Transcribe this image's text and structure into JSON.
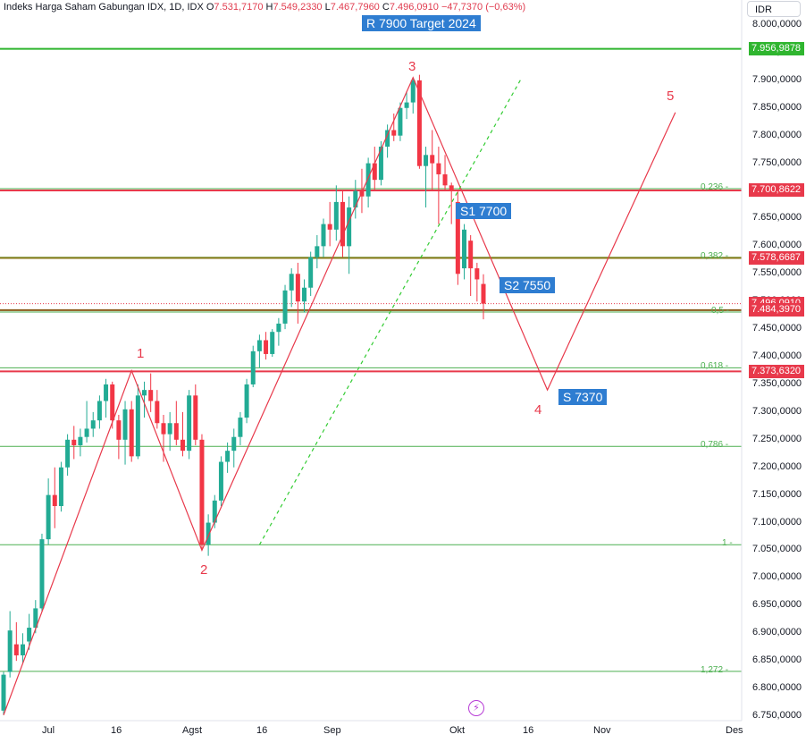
{
  "header": {
    "symbol": "Indeks Harga Saham Gabungan IDX, 1D, IDX",
    "o_label": "O",
    "o": "7.531,7170",
    "h_label": "H",
    "h": "7.549,2330",
    "l_label": "L",
    "l": "7.467,7960",
    "c_label": "C",
    "c": "7.496,0910",
    "change": "−47,7370 (−0,63%)"
  },
  "currency": "IDR",
  "annotations": {
    "resistance_label": "R 7900 Target 2024",
    "s1_label": "S1 7700",
    "s2_label": "S2 7550",
    "s_label": "S 7370",
    "wave_1": "1",
    "wave_2": "2",
    "wave_3": "3",
    "wave_4": "4",
    "wave_5": "5"
  },
  "price_tags": [
    {
      "text": "7.956,9878",
      "price": 7956.9878,
      "color": "#2fb52f"
    },
    {
      "text": "7.700,8622",
      "price": 7700.8622,
      "color": "#e8394b"
    },
    {
      "text": "7.578,6687",
      "price": 7578.6687,
      "color": "#e8394b"
    },
    {
      "text": "7.496,0910",
      "price": 7496.091,
      "color": "#e8394b"
    },
    {
      "text": "7.484,3970",
      "price": 7484.397,
      "color": "#e8394b"
    },
    {
      "text": "7.373,6320",
      "price": 7373.632,
      "color": "#e8394b"
    }
  ],
  "fib_levels": [
    {
      "label": "0,236",
      "price": 7704
    },
    {
      "label": "0,382",
      "price": 7580
    },
    {
      "label": "0,5",
      "price": 7481
    },
    {
      "label": "0,618",
      "price": 7380
    },
    {
      "label": "0,786",
      "price": 7238
    },
    {
      "label": "1",
      "price": 7060
    },
    {
      "label": "1,272",
      "price": 6831
    }
  ],
  "price_ticks": [
    "8.000,0000",
    "7.950,0000",
    "7.900,0000",
    "7.850,0000",
    "7.800,0000",
    "7.750,0000",
    "7.700,0000",
    "7.650,0000",
    "7.600,0000",
    "7.550,0000",
    "7.500,0000",
    "7.450,0000",
    "7.400,0000",
    "7.350,0000",
    "7.300,0000",
    "7.250,0000",
    "7.200,0000",
    "7.150,0000",
    "7.100,0000",
    "7.050,0000",
    "7.000,0000",
    "6.950,0000",
    "6.900,0000",
    "6.850,0000",
    "6.800,0000",
    "6.750,0000"
  ],
  "time_ticks": [
    "Jul",
    "16",
    "Agst",
    "16",
    "Sep",
    "Okt",
    "16",
    "Nov",
    "Des"
  ],
  "colors": {
    "up": "#22ab94",
    "down": "#f23645",
    "fib": "#4caf50",
    "wave": "#e8394b",
    "bluelabel": "#2e7dd1"
  },
  "chart_data": {
    "type": "candlestick",
    "ylabel": "IDR",
    "ylim": [
      6750,
      8000
    ],
    "candles": [
      {
        "o": 6760,
        "h": 6830,
        "l": 6752,
        "c": 6825
      },
      {
        "o": 6830,
        "h": 6940,
        "l": 6820,
        "c": 6905
      },
      {
        "o": 6880,
        "h": 6920,
        "l": 6850,
        "c": 6860
      },
      {
        "o": 6860,
        "h": 6900,
        "l": 6845,
        "c": 6880
      },
      {
        "o": 6885,
        "h": 6935,
        "l": 6870,
        "c": 6910
      },
      {
        "o": 6910,
        "h": 6960,
        "l": 6900,
        "c": 6945
      },
      {
        "o": 6945,
        "h": 7080,
        "l": 6940,
        "c": 7070
      },
      {
        "o": 7070,
        "h": 7180,
        "l": 7060,
        "c": 7150
      },
      {
        "o": 7150,
        "h": 7200,
        "l": 7090,
        "c": 7130
      },
      {
        "o": 7130,
        "h": 7210,
        "l": 7120,
        "c": 7200
      },
      {
        "o": 7200,
        "h": 7260,
        "l": 7185,
        "c": 7250
      },
      {
        "o": 7250,
        "h": 7275,
        "l": 7215,
        "c": 7240
      },
      {
        "o": 7240,
        "h": 7270,
        "l": 7220,
        "c": 7255
      },
      {
        "o": 7255,
        "h": 7320,
        "l": 7245,
        "c": 7270
      },
      {
        "o": 7270,
        "h": 7300,
        "l": 7255,
        "c": 7285
      },
      {
        "o": 7285,
        "h": 7330,
        "l": 7270,
        "c": 7320
      },
      {
        "o": 7320,
        "h": 7360,
        "l": 7290,
        "c": 7350
      },
      {
        "o": 7350,
        "h": 7355,
        "l": 7270,
        "c": 7285
      },
      {
        "o": 7285,
        "h": 7295,
        "l": 7215,
        "c": 7250
      },
      {
        "o": 7250,
        "h": 7320,
        "l": 7205,
        "c": 7305
      },
      {
        "o": 7305,
        "h": 7320,
        "l": 7210,
        "c": 7220
      },
      {
        "o": 7220,
        "h": 7350,
        "l": 7215,
        "c": 7330
      },
      {
        "o": 7330,
        "h": 7355,
        "l": 7290,
        "c": 7340
      },
      {
        "o": 7340,
        "h": 7370,
        "l": 7300,
        "c": 7320
      },
      {
        "o": 7320,
        "h": 7340,
        "l": 7270,
        "c": 7280
      },
      {
        "o": 7280,
        "h": 7295,
        "l": 7210,
        "c": 7260
      },
      {
        "o": 7260,
        "h": 7300,
        "l": 7230,
        "c": 7280
      },
      {
        "o": 7280,
        "h": 7320,
        "l": 7240,
        "c": 7250
      },
      {
        "o": 7250,
        "h": 7300,
        "l": 7220,
        "c": 7230
      },
      {
        "o": 7230,
        "h": 7340,
        "l": 7215,
        "c": 7330
      },
      {
        "o": 7330,
        "h": 7350,
        "l": 7240,
        "c": 7250
      },
      {
        "o": 7250,
        "h": 7260,
        "l": 7050,
        "c": 7060
      },
      {
        "o": 7060,
        "h": 7115,
        "l": 7040,
        "c": 7100
      },
      {
        "o": 7100,
        "h": 7150,
        "l": 7090,
        "c": 7140
      },
      {
        "o": 7140,
        "h": 7220,
        "l": 7130,
        "c": 7210
      },
      {
        "o": 7210,
        "h": 7245,
        "l": 7190,
        "c": 7230
      },
      {
        "o": 7230,
        "h": 7270,
        "l": 7200,
        "c": 7255
      },
      {
        "o": 7255,
        "h": 7300,
        "l": 7240,
        "c": 7290
      },
      {
        "o": 7290,
        "h": 7360,
        "l": 7280,
        "c": 7350
      },
      {
        "o": 7350,
        "h": 7420,
        "l": 7345,
        "c": 7410
      },
      {
        "o": 7410,
        "h": 7440,
        "l": 7380,
        "c": 7430
      },
      {
        "o": 7430,
        "h": 7445,
        "l": 7395,
        "c": 7405
      },
      {
        "o": 7405,
        "h": 7450,
        "l": 7400,
        "c": 7445
      },
      {
        "o": 7445,
        "h": 7470,
        "l": 7420,
        "c": 7460
      },
      {
        "o": 7460,
        "h": 7530,
        "l": 7450,
        "c": 7520
      },
      {
        "o": 7520,
        "h": 7560,
        "l": 7490,
        "c": 7550
      },
      {
        "o": 7550,
        "h": 7570,
        "l": 7460,
        "c": 7500
      },
      {
        "o": 7500,
        "h": 7540,
        "l": 7480,
        "c": 7525
      },
      {
        "o": 7525,
        "h": 7590,
        "l": 7510,
        "c": 7580
      },
      {
        "o": 7580,
        "h": 7620,
        "l": 7560,
        "c": 7600
      },
      {
        "o": 7600,
        "h": 7650,
        "l": 7580,
        "c": 7640
      },
      {
        "o": 7640,
        "h": 7680,
        "l": 7600,
        "c": 7630
      },
      {
        "o": 7630,
        "h": 7710,
        "l": 7610,
        "c": 7680
      },
      {
        "o": 7680,
        "h": 7700,
        "l": 7580,
        "c": 7600
      },
      {
        "o": 7600,
        "h": 7690,
        "l": 7550,
        "c": 7670
      },
      {
        "o": 7670,
        "h": 7720,
        "l": 7650,
        "c": 7700
      },
      {
        "o": 7700,
        "h": 7740,
        "l": 7660,
        "c": 7690
      },
      {
        "o": 7690,
        "h": 7760,
        "l": 7670,
        "c": 7750
      },
      {
        "o": 7750,
        "h": 7780,
        "l": 7700,
        "c": 7720
      },
      {
        "o": 7720,
        "h": 7790,
        "l": 7710,
        "c": 7780
      },
      {
        "o": 7780,
        "h": 7820,
        "l": 7760,
        "c": 7810
      },
      {
        "o": 7810,
        "h": 7840,
        "l": 7790,
        "c": 7800
      },
      {
        "o": 7800,
        "h": 7860,
        "l": 7790,
        "c": 7850
      },
      {
        "o": 7850,
        "h": 7880,
        "l": 7830,
        "c": 7860
      },
      {
        "o": 7860,
        "h": 7905,
        "l": 7840,
        "c": 7900
      },
      {
        "o": 7900,
        "h": 7910,
        "l": 7740,
        "c": 7745
      },
      {
        "o": 7745,
        "h": 7780,
        "l": 7670,
        "c": 7765
      },
      {
        "o": 7765,
        "h": 7810,
        "l": 7700,
        "c": 7750
      },
      {
        "o": 7750,
        "h": 7780,
        "l": 7640,
        "c": 7730
      },
      {
        "o": 7730,
        "h": 7765,
        "l": 7700,
        "c": 7710
      },
      {
        "o": 7710,
        "h": 7715,
        "l": 7640,
        "c": 7700
      },
      {
        "o": 7680,
        "h": 7700,
        "l": 7530,
        "c": 7550
      },
      {
        "o": 7560,
        "h": 7640,
        "l": 7540,
        "c": 7630
      },
      {
        "o": 7610,
        "h": 7620,
        "l": 7510,
        "c": 7560
      },
      {
        "o": 7560,
        "h": 7570,
        "l": 7500,
        "c": 7540
      },
      {
        "o": 7531.717,
        "h": 7549.233,
        "l": 7467.796,
        "c": 7496.091
      }
    ],
    "wave_points": [
      {
        "label": "start",
        "bar": 0,
        "price": 6752
      },
      {
        "label": "1",
        "bar": 20,
        "price": 7375
      },
      {
        "label": "2",
        "bar": 31,
        "price": 7050
      },
      {
        "label": "3",
        "bar": 64,
        "price": 7905
      },
      {
        "label": "4",
        "bar": 85,
        "price": 7340
      },
      {
        "label": "5",
        "bar": 105,
        "price": 7842
      }
    ],
    "trend_channel": {
      "from_bar": 40,
      "from_price": 7060,
      "to_bar": 81,
      "to_price": 7905
    }
  }
}
